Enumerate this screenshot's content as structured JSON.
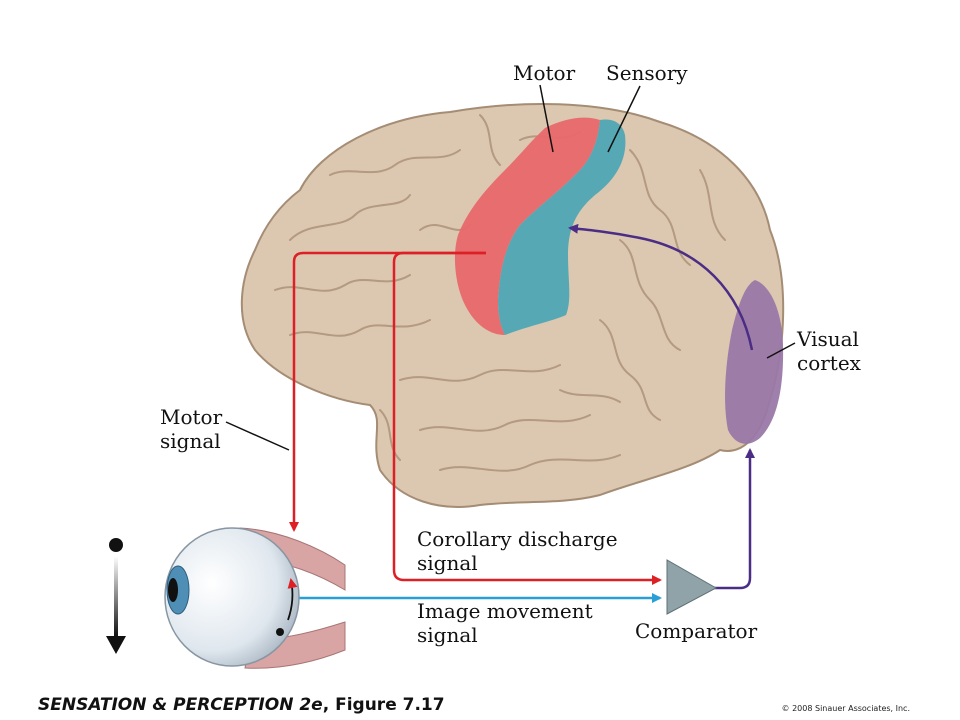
{
  "labels": {
    "motor": "Motor",
    "sensory": "Sensory",
    "visual_cortex_line1": "Visual",
    "visual_cortex_line2": "cortex",
    "motor_signal_line1": "Motor",
    "motor_signal_line2": "signal",
    "corollary_line1": "Corollary discharge",
    "corollary_line2": "signal",
    "image_movement_line1": "Image movement",
    "image_movement_line2": "signal",
    "comparator": "Comparator"
  },
  "footer": {
    "title_main": "SENSATION & PERCEPTION 2e",
    "title_suffix": ", Figure 7.17",
    "copyright": "© 2008 Sinauer Associates, Inc."
  },
  "colors": {
    "brain": "#dcc7b0",
    "motor_area": "#e8686a",
    "sensory_area": "#4ea7b4",
    "visual_area": "#9a78a8",
    "motor_arrow": "#dd1f26",
    "image_arrow": "#2a9fd6",
    "visual_arrow": "#4b2d86",
    "comparator": "#8fa3a8"
  }
}
